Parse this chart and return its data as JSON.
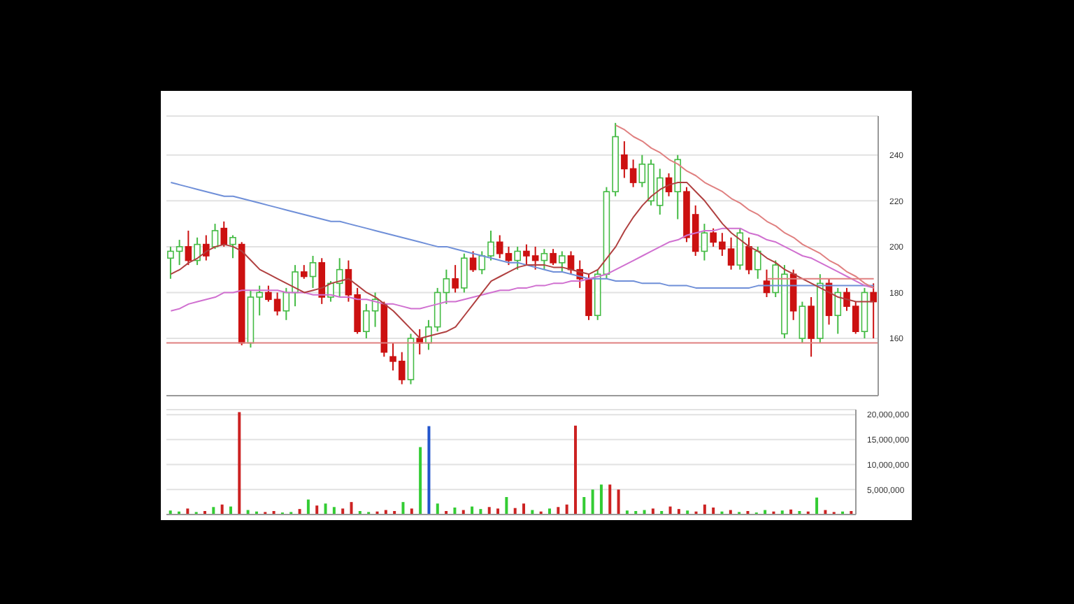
{
  "chart_data": [
    {
      "type": "candlestick",
      "categories": [
        null,
        null,
        null,
        null,
        null,
        null,
        null,
        null,
        null,
        null,
        null,
        null,
        null,
        null,
        null,
        null,
        null,
        null,
        null,
        null,
        null,
        null,
        null,
        null,
        null,
        null,
        null,
        null,
        null,
        null,
        null,
        null,
        null,
        null,
        null,
        null,
        null,
        null,
        null,
        null,
        null,
        null,
        null,
        null,
        null,
        null,
        null,
        null,
        null,
        null,
        null,
        null,
        null,
        null,
        null,
        null,
        null,
        null,
        null,
        null,
        null,
        null,
        null,
        null,
        null,
        null,
        null,
        null,
        null,
        null,
        null,
        null,
        null,
        null,
        null,
        null,
        null,
        null,
        null,
        null
      ],
      "ohlc": [
        [
          195,
          200,
          186,
          198
        ],
        [
          198,
          203,
          192,
          200
        ],
        [
          200,
          207,
          192,
          194
        ],
        [
          194,
          204,
          192,
          201
        ],
        [
          201,
          205,
          194,
          196
        ],
        [
          200,
          210,
          199,
          207
        ],
        [
          208,
          211,
          200,
          201
        ],
        [
          201,
          205,
          195,
          204
        ],
        [
          201,
          202,
          157,
          158
        ],
        [
          158,
          181,
          156,
          178
        ],
        [
          178,
          183,
          170,
          180
        ],
        [
          180,
          183,
          176,
          177
        ],
        [
          177,
          180,
          170,
          172
        ],
        [
          172,
          182,
          168,
          180
        ],
        [
          180,
          192,
          174,
          189
        ],
        [
          189,
          192,
          186,
          187
        ],
        [
          187,
          196,
          182,
          193
        ],
        [
          193,
          195,
          175,
          178
        ],
        [
          178,
          185,
          176,
          184
        ],
        [
          184,
          195,
          178,
          190
        ],
        [
          190,
          194,
          176,
          179
        ],
        [
          179,
          182,
          162,
          163
        ],
        [
          163,
          175,
          160,
          172
        ],
        [
          172,
          180,
          165,
          177
        ],
        [
          175,
          176,
          152,
          154
        ],
        [
          152,
          158,
          146,
          150
        ],
        [
          150,
          154,
          140,
          142
        ],
        [
          142,
          162,
          140,
          160
        ],
        [
          160,
          164,
          153,
          158
        ],
        [
          158,
          168,
          155,
          165
        ],
        [
          165,
          182,
          163,
          180
        ],
        [
          180,
          190,
          175,
          186
        ],
        [
          186,
          192,
          180,
          182
        ],
        [
          182,
          197,
          180,
          195
        ],
        [
          195,
          198,
          189,
          190
        ],
        [
          190,
          198,
          188,
          196
        ],
        [
          196,
          207,
          194,
          202
        ],
        [
          202,
          205,
          195,
          197
        ],
        [
          197,
          200,
          192,
          194
        ],
        [
          194,
          200,
          190,
          198
        ],
        [
          198,
          201,
          192,
          196
        ],
        [
          196,
          200,
          190,
          194
        ],
        [
          194,
          199,
          190,
          197
        ],
        [
          197,
          199,
          192,
          193
        ],
        [
          193,
          198,
          189,
          196
        ],
        [
          196,
          198,
          188,
          190
        ],
        [
          190,
          194,
          182,
          186
        ],
        [
          186,
          188,
          168,
          170
        ],
        [
          170,
          190,
          168,
          188
        ],
        [
          188,
          226,
          186,
          224
        ],
        [
          224,
          254,
          222,
          248
        ],
        [
          240,
          246,
          230,
          234
        ],
        [
          234,
          238,
          226,
          228
        ],
        [
          228,
          240,
          226,
          236
        ],
        [
          220,
          238,
          218,
          236
        ],
        [
          218,
          234,
          214,
          230
        ],
        [
          230,
          232,
          222,
          224
        ],
        [
          224,
          240,
          212,
          238
        ],
        [
          224,
          226,
          202,
          204
        ],
        [
          214,
          218,
          196,
          198
        ],
        [
          198,
          210,
          194,
          206
        ],
        [
          206,
          208,
          200,
          202
        ],
        [
          202,
          206,
          196,
          199
        ],
        [
          199,
          204,
          190,
          192
        ],
        [
          192,
          208,
          190,
          206
        ],
        [
          200,
          204,
          188,
          190
        ],
        [
          190,
          200,
          186,
          198
        ],
        [
          185,
          190,
          178,
          180
        ],
        [
          180,
          194,
          178,
          192
        ],
        [
          162,
          192,
          160,
          188
        ],
        [
          188,
          190,
          168,
          172
        ],
        [
          160,
          176,
          158,
          174
        ],
        [
          174,
          178,
          152,
          160
        ],
        [
          160,
          188,
          158,
          184
        ],
        [
          184,
          186,
          166,
          170
        ],
        [
          170,
          182,
          162,
          180
        ],
        [
          180,
          182,
          172,
          174
        ],
        [
          174,
          176,
          162,
          163
        ],
        [
          163,
          182,
          160,
          180
        ],
        [
          180,
          184,
          160,
          176
        ]
      ],
      "series": [
        {
          "type": "line",
          "color": "#6f8fd8",
          "values": [
            228,
            227,
            226,
            225,
            224,
            223,
            222,
            222,
            221,
            220,
            219,
            218,
            217,
            216,
            215,
            214,
            213,
            212,
            211,
            211,
            210,
            209,
            208,
            207,
            206,
            205,
            204,
            203,
            202,
            201,
            200,
            200,
            199,
            198,
            197,
            196,
            195,
            194,
            193,
            193,
            192,
            191,
            190,
            189,
            189,
            188,
            187,
            186,
            186,
            186,
            185,
            185,
            185,
            184,
            184,
            184,
            183,
            183,
            183,
            182,
            182,
            182,
            182,
            182,
            182,
            182,
            183,
            183,
            183,
            183,
            183,
            183,
            183,
            183,
            183,
            183,
            183,
            183,
            183,
            183
          ]
        },
        {
          "type": "line",
          "color": "#d070d0",
          "values": [
            172,
            173,
            175,
            176,
            177,
            178,
            180,
            180,
            181,
            181,
            181,
            181,
            181,
            180,
            180,
            180,
            179,
            179,
            179,
            178,
            178,
            177,
            177,
            176,
            175,
            175,
            174,
            173,
            173,
            174,
            175,
            176,
            176,
            177,
            178,
            179,
            180,
            181,
            181,
            182,
            182,
            183,
            183,
            184,
            184,
            185,
            185,
            186,
            187,
            188,
            190,
            192,
            194,
            196,
            198,
            200,
            202,
            203,
            205,
            206,
            207,
            207,
            208,
            208,
            208,
            206,
            205,
            203,
            202,
            200,
            198,
            196,
            195,
            193,
            191,
            189,
            187,
            185,
            183,
            182
          ]
        },
        {
          "type": "line",
          "color": "#b04040",
          "values": [
            188,
            190,
            193,
            195,
            198,
            200,
            201,
            200,
            198,
            194,
            190,
            188,
            186,
            184,
            182,
            180,
            181,
            182,
            184,
            185,
            186,
            183,
            180,
            178,
            175,
            172,
            168,
            164,
            160,
            161,
            162,
            163,
            165,
            170,
            175,
            180,
            185,
            187,
            189,
            191,
            192,
            192,
            192,
            191,
            191,
            190,
            189,
            188,
            190,
            195,
            200,
            207,
            213,
            218,
            222,
            225,
            227,
            228,
            228,
            224,
            220,
            215,
            210,
            206,
            203,
            200,
            198,
            195,
            193,
            190,
            188,
            186,
            184,
            182,
            180,
            178,
            177,
            176,
            176,
            176
          ]
        },
        {
          "type": "line",
          "color": "#e08080",
          "values": [
            null,
            null,
            null,
            null,
            null,
            null,
            null,
            null,
            null,
            null,
            null,
            null,
            null,
            null,
            null,
            null,
            null,
            null,
            null,
            null,
            null,
            null,
            null,
            null,
            null,
            null,
            null,
            null,
            null,
            null,
            null,
            null,
            null,
            null,
            null,
            null,
            null,
            null,
            null,
            null,
            null,
            null,
            null,
            null,
            null,
            null,
            null,
            null,
            null,
            null,
            253,
            251,
            248,
            246,
            243,
            241,
            238,
            236,
            233,
            231,
            228,
            226,
            224,
            221,
            219,
            216,
            214,
            211,
            209,
            206,
            204,
            201,
            199,
            197,
            194,
            192,
            189,
            187,
            184,
            182
          ]
        },
        {
          "type": "line",
          "color": "#e08080",
          "values": [
            null,
            null,
            null,
            null,
            null,
            null,
            null,
            null,
            null,
            null,
            null,
            null,
            null,
            null,
            null,
            null,
            null,
            null,
            null,
            null,
            null,
            null,
            null,
            null,
            null,
            null,
            null,
            null,
            null,
            null,
            null,
            null,
            null,
            null,
            null,
            null,
            null,
            null,
            null,
            null,
            null,
            null,
            null,
            null,
            null,
            null,
            null,
            null,
            null,
            null,
            null,
            null,
            null,
            null,
            null,
            null,
            null,
            null,
            null,
            null,
            null,
            null,
            null,
            null,
            null,
            null,
            null,
            186,
            186,
            186,
            186,
            186,
            186,
            186,
            186,
            186,
            186,
            186,
            186,
            186
          ]
        }
      ],
      "ref_lines": [
        {
          "axis": "y",
          "value": 158,
          "color": "#e08080"
        }
      ],
      "ylim": [
        135,
        257
      ],
      "yticks": [
        160,
        180,
        200,
        220,
        240
      ],
      "grid": "y",
      "tick_labels": "y"
    },
    {
      "type": "bar",
      "categories": [
        null,
        null,
        null,
        null,
        null,
        null,
        null,
        null,
        null,
        null,
        null,
        null,
        null,
        null,
        null,
        null,
        null,
        null,
        null,
        null,
        null,
        null,
        null,
        null,
        null,
        null,
        null,
        null,
        null,
        null,
        null,
        null,
        null,
        null,
        null,
        null,
        null,
        null,
        null,
        null,
        null,
        null,
        null,
        null,
        null,
        null,
        null,
        null,
        null,
        null,
        null,
        null,
        null,
        null,
        null,
        null,
        null,
        null,
        null,
        null,
        null,
        null,
        null,
        null,
        null,
        null,
        null,
        null,
        null,
        null,
        null,
        null,
        null,
        null,
        null,
        null,
        null,
        null,
        null,
        null
      ],
      "values": [
        800000,
        600000,
        1200000,
        500000,
        700000,
        1500000,
        2000000,
        1600000,
        20500000,
        900000,
        600000,
        500000,
        700000,
        400000,
        500000,
        1100000,
        3000000,
        1800000,
        2200000,
        1500000,
        1200000,
        2500000,
        700000,
        500000,
        600000,
        900000,
        700000,
        2500000,
        1200000,
        13500000,
        17700000,
        2200000,
        700000,
        1400000,
        900000,
        1600000,
        1100000,
        1500000,
        1200000,
        3500000,
        1300000,
        2200000,
        900000,
        600000,
        1200000,
        1500000,
        2000000,
        17800000,
        3500000,
        5000000,
        6000000,
        6000000,
        5000000,
        800000,
        700000,
        900000,
        1200000,
        700000,
        1600000,
        1100000,
        800000,
        600000,
        2000000,
        1400000,
        600000,
        900000,
        500000,
        700000,
        400000,
        900000,
        600000,
        800000,
        1000000,
        700000,
        600000,
        3400000,
        900000,
        500000,
        600000,
        700000
      ],
      "colors": [
        "#33cc33",
        "#33cc33",
        "#cc2222",
        "#33cc33",
        "#cc2222",
        "#33cc33",
        "#cc2222",
        "#33cc33",
        "#cc2222",
        "#33cc33",
        "#33cc33",
        "#cc2222",
        "#cc2222",
        "#33cc33",
        "#33cc33",
        "#cc2222",
        "#33cc33",
        "#cc2222",
        "#33cc33",
        "#33cc33",
        "#cc2222",
        "#cc2222",
        "#33cc33",
        "#33cc33",
        "#cc2222",
        "#cc2222",
        "#cc2222",
        "#33cc33",
        "#cc2222",
        "#33cc33",
        "#2255cc",
        "#33cc33",
        "#cc2222",
        "#33cc33",
        "#cc2222",
        "#33cc33",
        "#33cc33",
        "#cc2222",
        "#cc2222",
        "#33cc33",
        "#cc2222",
        "#cc2222",
        "#33cc33",
        "#cc2222",
        "#33cc33",
        "#cc2222",
        "#cc2222",
        "#cc2222",
        "#33cc33",
        "#33cc33",
        "#33cc33",
        "#cc2222",
        "#cc2222",
        "#33cc33",
        "#33cc33",
        "#33cc33",
        "#cc2222",
        "#33cc33",
        "#cc2222",
        "#cc2222",
        "#33cc33",
        "#cc2222",
        "#cc2222",
        "#cc2222",
        "#33cc33",
        "#cc2222",
        "#33cc33",
        "#cc2222",
        "#33cc33",
        "#33cc33",
        "#cc2222",
        "#33cc33",
        "#cc2222",
        "#33cc33",
        "#cc2222",
        "#33cc33",
        "#cc2222",
        "#cc2222",
        "#33cc33",
        "#cc2222"
      ],
      "ylim": [
        0,
        21000000
      ],
      "yticks": [
        {
          "value": 5000000,
          "label": "5,000,000"
        },
        {
          "value": 10000000,
          "label": "10,000,000"
        },
        {
          "value": 15000000,
          "label": "15,000,000"
        },
        {
          "value": 20000000,
          "label": "20,000,000"
        }
      ],
      "grid": "y",
      "tick_labels": "y"
    }
  ]
}
